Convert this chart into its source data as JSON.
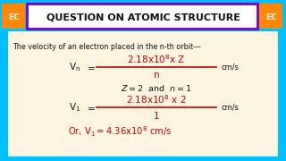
{
  "bg_color": "#00c0ff",
  "content_bg": "#fdf5e0",
  "title_text": "QUESTION ON ATOMIC STRUCTURE",
  "title_box_color": "#ffffff",
  "title_border_color": "#7700cc",
  "ec_box_color": "#ff8800",
  "ec_text": "EC",
  "line1": "The velocity of an electron placed in the n-th orbit---",
  "formula_color": "#cc0000",
  "dark_color": "#111111",
  "red_color": "#cc0000"
}
